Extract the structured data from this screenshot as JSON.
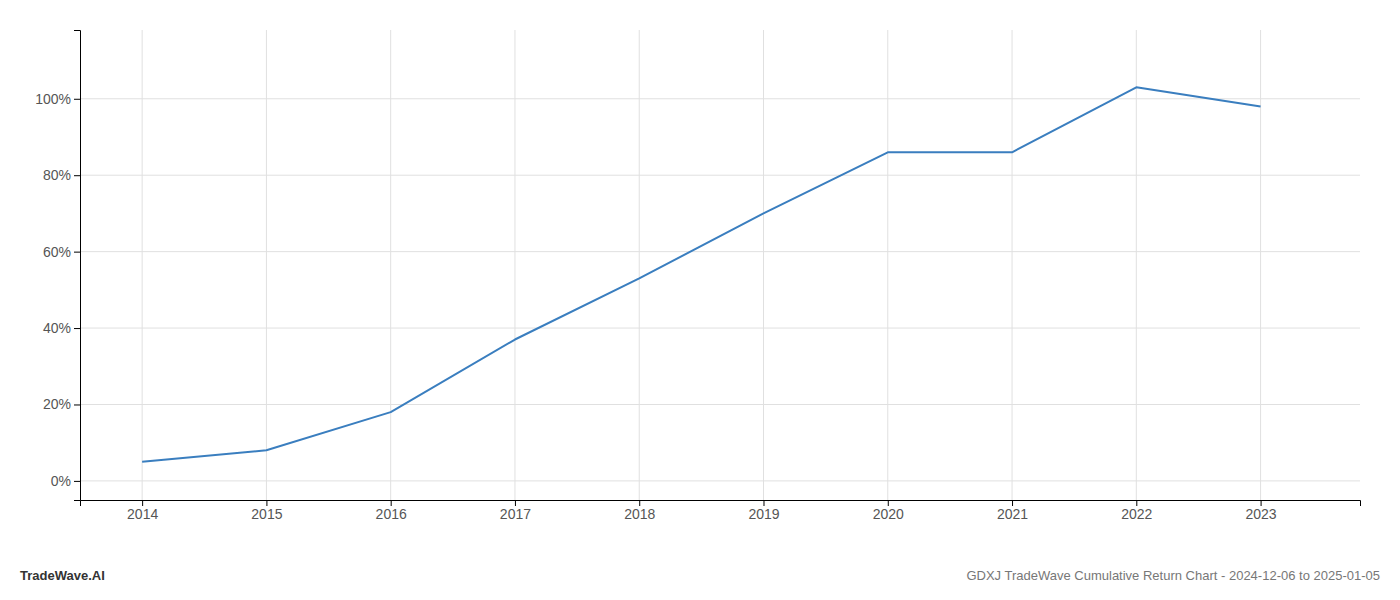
{
  "chart_data": {
    "type": "line",
    "x": [
      2014,
      2015,
      2016,
      2017,
      2018,
      2019,
      2020,
      2021,
      2022,
      2023
    ],
    "values": [
      5,
      8,
      18,
      37,
      53,
      70,
      86,
      86,
      103,
      98
    ],
    "color": "#3a7ebf",
    "xlim": [
      2013.5,
      2023.8
    ],
    "ylim": [
      -5,
      118
    ],
    "xticks": [
      2014,
      2015,
      2016,
      2017,
      2018,
      2019,
      2020,
      2021,
      2022,
      2023
    ],
    "yticks": [
      {
        "value": 0,
        "label": "0%"
      },
      {
        "value": 20,
        "label": "20%"
      },
      {
        "value": 40,
        "label": "40%"
      },
      {
        "value": 60,
        "label": "60%"
      },
      {
        "value": 80,
        "label": "80%"
      },
      {
        "value": 100,
        "label": "100%"
      }
    ],
    "grid": true,
    "annotations": [
      "TradeWave.AI",
      "GDXJ TradeWave Cumulative Return Chart - 2024-12-06 to 2025-01-05"
    ]
  }
}
